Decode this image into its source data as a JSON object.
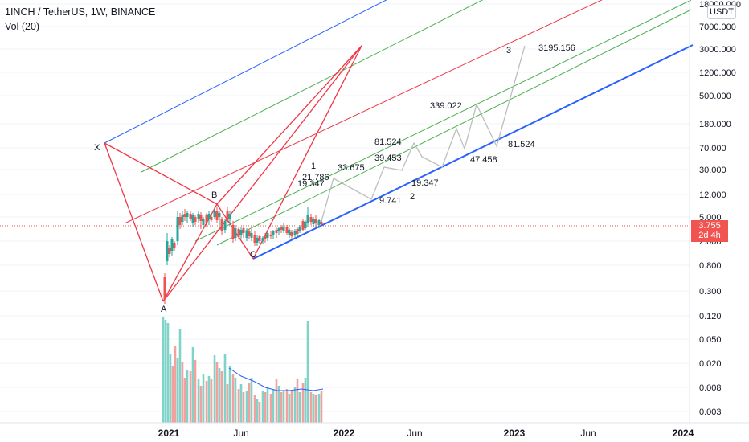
{
  "header": {
    "symbol_line": "1INCH / TetherUS, 1W, BINANCE",
    "volume_line": "Vol (20)"
  },
  "currency_button": "USDT",
  "last_price": {
    "value": "3.755",
    "countdown": "2d 4h"
  },
  "colors": {
    "up": "#26a69a",
    "down": "#ef5350",
    "vol_up": "#7fd3c8",
    "vol_down": "#f4a19e",
    "pattern": "#f23645",
    "pitch_blue": "#2962ff",
    "fib_green": "#4caf50",
    "fib_red": "#f23645",
    "projection": "#bdbdbd",
    "vol_ma": "#2962ff",
    "axis_text": "#131722"
  },
  "chart_data": {
    "type": "candlestick",
    "title": "1INCH / TetherUS, 1W, BINANCE",
    "price_axis": {
      "scale": "log",
      "ticks": [
        "18000.000",
        "7000.000",
        "3000.000",
        "1200.000",
        "500.000",
        "180.000",
        "70.000",
        "30.000",
        "12.000",
        "5.000",
        "2.000",
        "0.800",
        "0.300",
        "0.120",
        "0.050",
        "0.020",
        "0.008",
        "0.003"
      ]
    },
    "time_axis": {
      "ticks": [
        {
          "label": "2021",
          "bold": true
        },
        {
          "label": "Jun",
          "bold": false
        },
        {
          "label": "2022",
          "bold": true
        },
        {
          "label": "Jun",
          "bold": false
        },
        {
          "label": "2023",
          "bold": true
        },
        {
          "label": "Jun",
          "bold": false
        },
        {
          "label": "2024",
          "bold": true
        }
      ]
    },
    "pattern_points": [
      "X",
      "A",
      "B",
      "C"
    ],
    "wave_labels": [
      "1",
      "2",
      "3"
    ],
    "projection_annotations": [
      "21.786",
      "19.347",
      "33.675",
      "81.524",
      "39.453",
      "9.741",
      "19.347",
      "339.022",
      "47.458",
      "81.524",
      "3195.156"
    ],
    "volume_indicator": "Vol (20)"
  }
}
